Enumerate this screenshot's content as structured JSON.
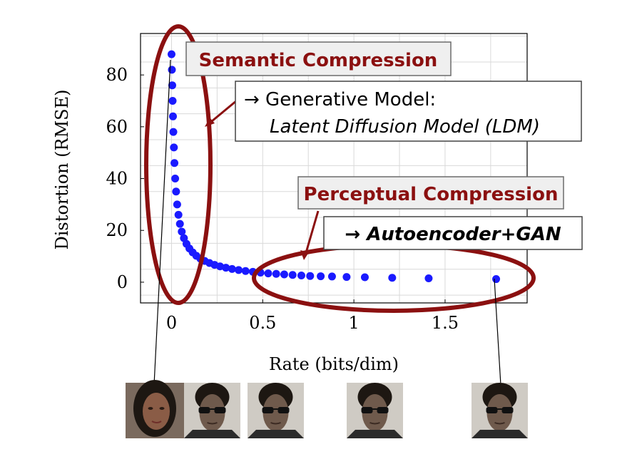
{
  "chart_data": {
    "type": "scatter",
    "xlabel": "Rate (bits/dim)",
    "ylabel": "Distortion (RMSE)",
    "xlim": [
      -0.17,
      1.95
    ],
    "ylim": [
      -8,
      96
    ],
    "x_ticks": [
      0,
      0.5,
      1,
      1.5
    ],
    "x_tick_labels": [
      "0",
      "0.5",
      "1",
      "1.5"
    ],
    "y_ticks": [
      0,
      20,
      40,
      60,
      80
    ],
    "y_tick_labels": [
      "0",
      "20",
      "40",
      "60",
      "80"
    ],
    "grid": true,
    "series": [
      {
        "points": [
          [
            0.0,
            88.0
          ],
          [
            0.002,
            82.0
          ],
          [
            0.004,
            76.0
          ],
          [
            0.006,
            70.0
          ],
          [
            0.008,
            64.0
          ],
          [
            0.01,
            58.0
          ],
          [
            0.013,
            52.0
          ],
          [
            0.016,
            46.0
          ],
          [
            0.02,
            40.0
          ],
          [
            0.025,
            35.0
          ],
          [
            0.031,
            30.0
          ],
          [
            0.038,
            26.0
          ],
          [
            0.046,
            22.5
          ],
          [
            0.056,
            19.5
          ],
          [
            0.068,
            17.0
          ],
          [
            0.082,
            14.8
          ],
          [
            0.098,
            13.0
          ],
          [
            0.116,
            11.5
          ],
          [
            0.136,
            10.2
          ],
          [
            0.158,
            9.1
          ],
          [
            0.182,
            8.2
          ],
          [
            0.208,
            7.4
          ],
          [
            0.236,
            6.7
          ],
          [
            0.266,
            6.1
          ],
          [
            0.298,
            5.6
          ],
          [
            0.332,
            5.1
          ],
          [
            0.368,
            4.7
          ],
          [
            0.406,
            4.3
          ],
          [
            0.446,
            4.0
          ],
          [
            0.488,
            3.7
          ],
          [
            0.53,
            3.4
          ],
          [
            0.574,
            3.2
          ],
          [
            0.618,
            3.0
          ],
          [
            0.664,
            2.8
          ],
          [
            0.712,
            2.6
          ],
          [
            0.76,
            2.4
          ],
          [
            0.818,
            2.3
          ],
          [
            0.88,
            2.2
          ],
          [
            0.96,
            2.0
          ],
          [
            1.06,
            1.9
          ],
          [
            1.21,
            1.7
          ],
          [
            1.41,
            1.5
          ],
          [
            1.78,
            1.2
          ]
        ]
      }
    ]
  },
  "annotations": {
    "semantic": "Semantic Compression",
    "generative_line1": "→ Generative Model:",
    "generative_line2": "Latent Diffusion Model (LDM)",
    "perceptual": "Perceptual Compression",
    "autoencoder": "→ Autoencoder+GAN"
  },
  "colors": {
    "points": "#1a1aff",
    "highlight": "#8b1010",
    "annotation_text": "#8b1010",
    "label_box_fill": "#efefef",
    "grid": "#d9d9d9",
    "axis": "#000000",
    "face_woman": "#8a5c46",
    "face_man": "#6f5a4c",
    "sunglasses": "#111111",
    "hair": "#1d1712"
  },
  "images": [
    {
      "name": "face-woman-image",
      "kind": "woman"
    },
    {
      "name": "face-man-image-1",
      "kind": "man"
    },
    {
      "name": "face-man-image-2",
      "kind": "man"
    },
    {
      "name": "face-man-image-3",
      "kind": "man"
    },
    {
      "name": "face-man-image-4",
      "kind": "man"
    }
  ]
}
